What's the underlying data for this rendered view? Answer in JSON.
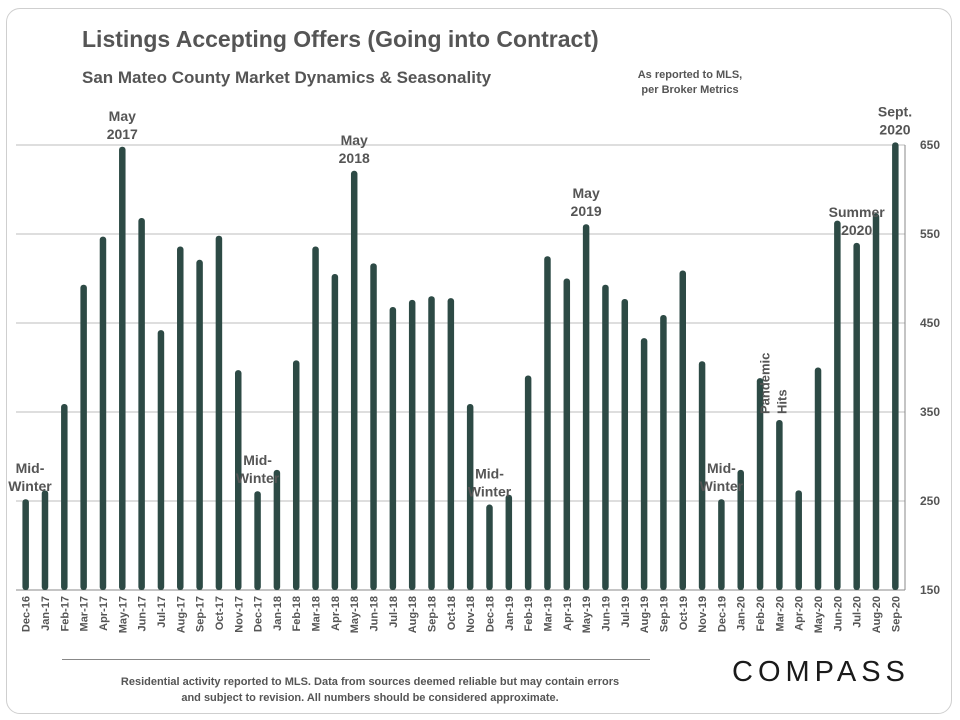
{
  "header": {
    "title": "Listings Accepting Offers (Going into Contract)",
    "subtitle": "San Mateo County Market Dynamics  & Seasonality",
    "source_note_line1": "As reported to MLS,",
    "source_note_line2": "per Broker Metrics"
  },
  "footer": {
    "note_line1": "Residential activity reported to MLS. Data from sources deemed reliable but may contain errors",
    "note_line2": "and subject to revision. All numbers should be considered approximate.",
    "logo": "COMPASS"
  },
  "colors": {
    "bar": "#2d4a45",
    "grid": "#bdbdbd",
    "text": "#555555"
  },
  "chart_data": {
    "type": "bar",
    "title": "Listings Accepting Offers (Going into Contract)",
    "subtitle": "San Mateo County Market Dynamics  & Seasonality",
    "categories": [
      "Dec-16",
      "Jan-17",
      "Feb-17",
      "Mar-17",
      "Apr-17",
      "May-17",
      "Jun-17",
      "Jul-17",
      "Aug-17",
      "Sep-17",
      "Oct-17",
      "Nov-17",
      "Dec-17",
      "Jan-18",
      "Feb-18",
      "Mar-18",
      "Apr-18",
      "May-18",
      "Jun-18",
      "Jul-18",
      "Aug-18",
      "Sep-18",
      "Oct-18",
      "Nov-18",
      "Dec-18",
      "Jan-19",
      "Feb-19",
      "Mar-19",
      "Apr-19",
      "May-19",
      "Jun-19",
      "Jul-19",
      "Aug-19",
      "Sep-19",
      "Oct-19",
      "Nov-19",
      "Dec-19",
      "Jan-20",
      "Feb-20",
      "Mar-20",
      "Apr-20",
      "May-20",
      "Jun-20",
      "Jul-20",
      "Aug-20",
      "Sep-20"
    ],
    "values": [
      252,
      262,
      359,
      493,
      547,
      648,
      568,
      442,
      536,
      521,
      548,
      397,
      261,
      285,
      408,
      536,
      505,
      621,
      517,
      468,
      476,
      480,
      478,
      359,
      246,
      257,
      391,
      525,
      500,
      561,
      493,
      477,
      433,
      459,
      509,
      407,
      252,
      285,
      388,
      341,
      262,
      400,
      565,
      540,
      573,
      653
    ],
    "yticks": [
      150,
      250,
      350,
      450,
      550,
      650
    ],
    "ylim": [
      150,
      650
    ],
    "grid": true,
    "axis": "right",
    "annotations": [
      {
        "index": 0,
        "lines": [
          "Mid-",
          "Winter"
        ]
      },
      {
        "index": 5,
        "lines": [
          "May",
          "2017"
        ]
      },
      {
        "index": 12,
        "lines": [
          "Mid-",
          "Winter"
        ]
      },
      {
        "index": 17,
        "lines": [
          "May",
          "2018"
        ]
      },
      {
        "index": 24,
        "lines": [
          "Mid-",
          "Winter"
        ]
      },
      {
        "index": 29,
        "lines": [
          "May",
          "2019"
        ]
      },
      {
        "index": 36,
        "lines": [
          "Mid-",
          "Winter"
        ]
      },
      {
        "index": 39,
        "lines": [
          "Pandemic",
          "Hits"
        ],
        "rotated": true
      },
      {
        "index": 43,
        "lines": [
          "Summer",
          "2020"
        ]
      },
      {
        "index": 45,
        "lines": [
          "Sept.",
          "2020"
        ]
      }
    ]
  }
}
